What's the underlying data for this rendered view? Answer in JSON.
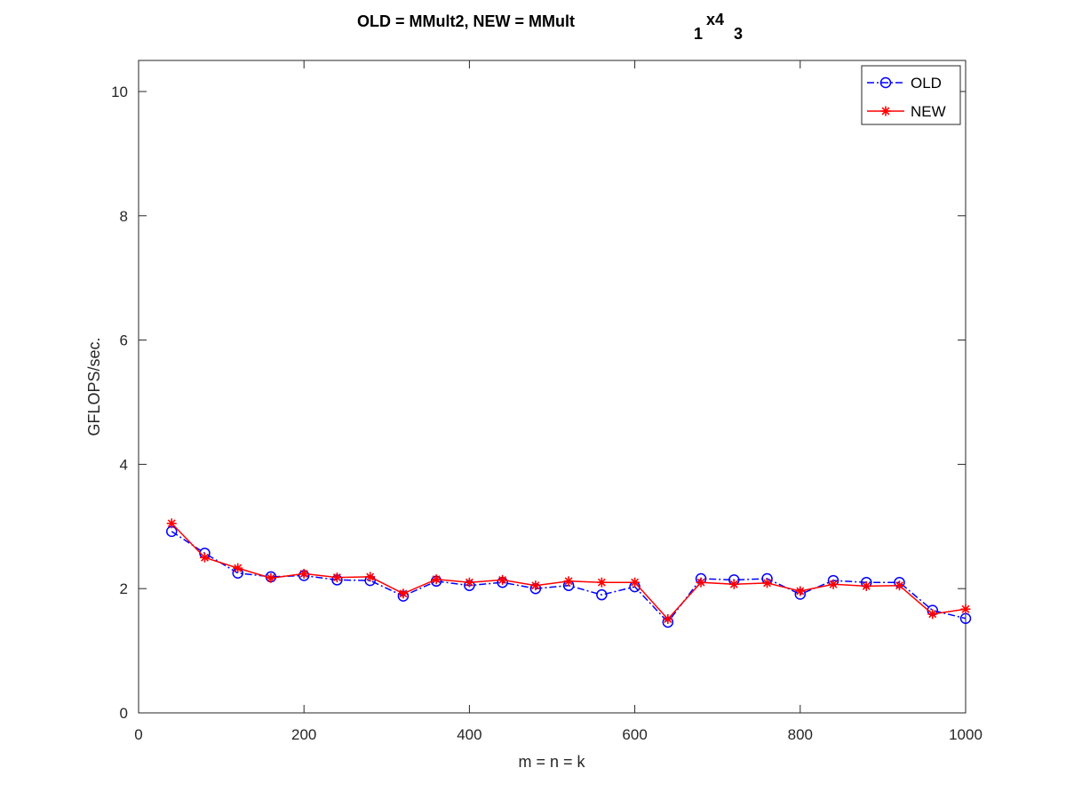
{
  "chart_data": {
    "type": "line",
    "title": {
      "main": "OLD = MMult2, NEW = MMult",
      "sub1": "1",
      "mid": "x4",
      "sub2": "3"
    },
    "xlabel": "m = n = k",
    "ylabel": "GFLOPS/sec.",
    "xlim": [
      0,
      1000
    ],
    "ylim": [
      0,
      10.5
    ],
    "xticks": [
      0,
      200,
      400,
      600,
      800,
      1000
    ],
    "yticks": [
      0,
      2,
      4,
      6,
      8,
      10
    ],
    "grid": false,
    "legend_position": "top-right",
    "x": [
      40,
      80,
      120,
      160,
      200,
      240,
      280,
      320,
      360,
      400,
      440,
      480,
      520,
      560,
      600,
      640,
      680,
      720,
      760,
      800,
      840,
      880,
      920,
      960,
      1000
    ],
    "series": [
      {
        "name": "OLD",
        "color": "#0000ff",
        "marker": "circle",
        "line_style": "dash-dot",
        "values": [
          2.92,
          2.57,
          2.25,
          2.19,
          2.21,
          2.14,
          2.13,
          1.88,
          2.12,
          2.05,
          2.1,
          2.0,
          2.05,
          1.9,
          2.03,
          1.46,
          2.16,
          2.14,
          2.16,
          1.91,
          2.13,
          2.1,
          2.1,
          1.65,
          1.52
        ]
      },
      {
        "name": "NEW",
        "color": "#ff0000",
        "marker": "star",
        "line_style": "solid",
        "values": [
          3.05,
          2.5,
          2.33,
          2.17,
          2.24,
          2.18,
          2.19,
          1.92,
          2.15,
          2.1,
          2.14,
          2.05,
          2.12,
          2.1,
          2.1,
          1.51,
          2.1,
          2.07,
          2.09,
          1.96,
          2.07,
          2.04,
          2.05,
          1.59,
          1.67
        ]
      }
    ]
  }
}
